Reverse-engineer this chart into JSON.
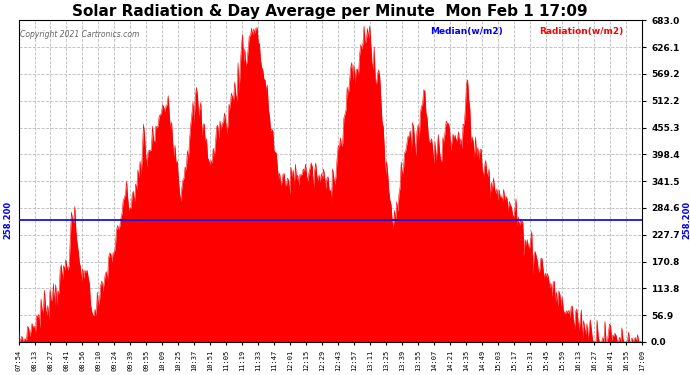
{
  "title": "Solar Radiation & Day Average per Minute  Mon Feb 1 17:09",
  "copyright": "Copyright 2021 Cartronics.com",
  "legend_median": "Median(w/m2)",
  "legend_radiation": "Radiation(w/m2)",
  "median_value": 258.2,
  "y_max": 683.0,
  "y_min": 0.0,
  "y_ticks": [
    0.0,
    56.9,
    113.8,
    170.8,
    227.7,
    284.6,
    341.5,
    398.4,
    455.3,
    512.2,
    569.2,
    626.1,
    683.0
  ],
  "left_y_label": "258.200",
  "right_y_label": "258.200",
  "bar_color": "#FF0000",
  "median_color": "#0000EE",
  "background_color": "#FFFFFF",
  "grid_color": "#BBBBBB",
  "title_fontsize": 11,
  "x_tick_labels": [
    "07:54",
    "08:13",
    "08:27",
    "08:41",
    "08:56",
    "09:10",
    "09:24",
    "09:39",
    "09:55",
    "10:09",
    "10:25",
    "10:37",
    "10:51",
    "11:05",
    "11:19",
    "11:33",
    "11:47",
    "12:01",
    "12:15",
    "12:29",
    "12:43",
    "12:57",
    "13:11",
    "13:25",
    "13:39",
    "13:55",
    "14:07",
    "14:21",
    "14:35",
    "14:49",
    "15:03",
    "15:17",
    "15:31",
    "15:45",
    "15:59",
    "16:13",
    "16:27",
    "16:41",
    "16:55",
    "17:09"
  ]
}
